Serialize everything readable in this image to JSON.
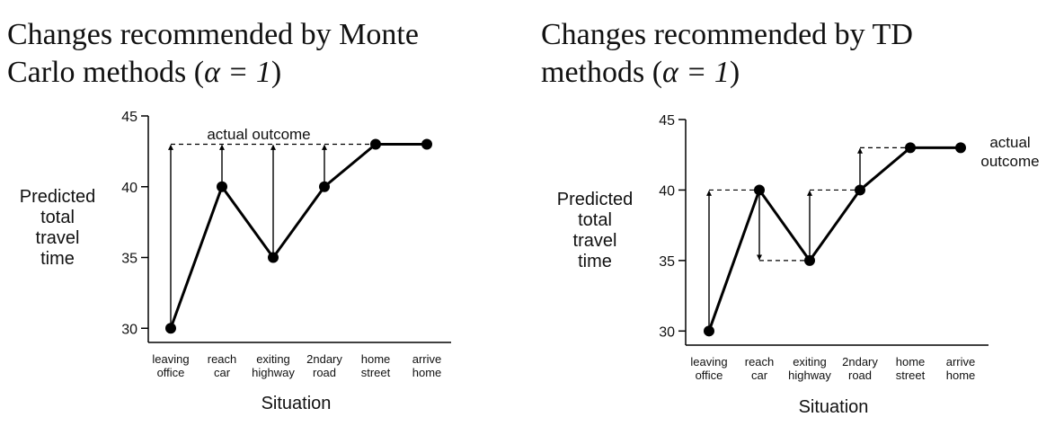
{
  "panels": {
    "left": {
      "title_line1": "Changes recommended by Monte",
      "title_line2": "Carlo methods (",
      "title_symbol": "α = 1",
      "title_close": ")"
    },
    "right": {
      "title_line1": "Changes recommended by TD",
      "title_line2": "methods (",
      "title_symbol": "α = 1",
      "title_close": ")"
    }
  },
  "chart_data": [
    {
      "type": "line",
      "method": "Monte Carlo",
      "categories": [
        [
          "leaving",
          "office"
        ],
        [
          "reach",
          "car"
        ],
        [
          "exiting",
          "highway"
        ],
        [
          "2ndary",
          "road"
        ],
        [
          "home",
          "street"
        ],
        [
          "arrive",
          "home"
        ]
      ],
      "values": [
        30,
        40,
        35,
        40,
        43,
        43
      ],
      "targets": [
        43,
        43,
        43,
        43,
        null,
        null
      ],
      "xlabel": "Situation",
      "ylabel": [
        "Predicted",
        "total",
        "travel",
        "time"
      ],
      "ylim": [
        29,
        45
      ],
      "yticks": [
        30,
        35,
        40,
        45
      ],
      "annotation": [
        "actual outcome"
      ],
      "color": "#000000"
    },
    {
      "type": "line",
      "method": "TD",
      "categories": [
        [
          "leaving",
          "office"
        ],
        [
          "reach",
          "car"
        ],
        [
          "exiting",
          "highway"
        ],
        [
          "2ndary",
          "road"
        ],
        [
          "home",
          "street"
        ],
        [
          "arrive",
          "home"
        ]
      ],
      "values": [
        30,
        40,
        35,
        40,
        43,
        43
      ],
      "targets": [
        40,
        35,
        40,
        43,
        43,
        null
      ],
      "xlabel": "Situation",
      "ylabel": [
        "Predicted",
        "total",
        "travel",
        "time"
      ],
      "ylim": [
        29,
        45
      ],
      "yticks": [
        30,
        35,
        40,
        45
      ],
      "annotation": [
        "actual",
        "outcome"
      ],
      "color": "#000000"
    }
  ]
}
